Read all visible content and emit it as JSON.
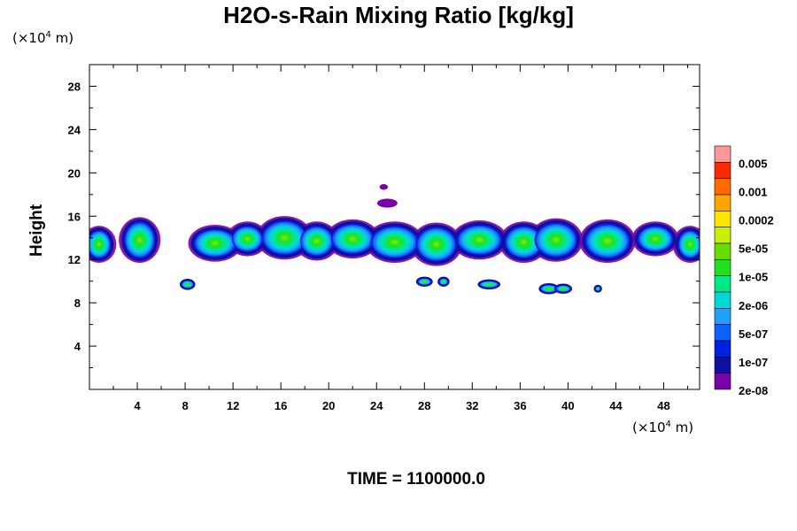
{
  "chart_data": {
    "type": "heatmap",
    "title": "H2O-s-Rain Mixing Ratio [kg/kg]",
    "ylabel": "Height",
    "xlabel": "",
    "x_unit_prefix": "(×10",
    "x_unit_exp": "4",
    "x_unit_suffix": " m)",
    "y_unit_prefix": "(×10",
    "y_unit_exp": "4",
    "y_unit_suffix": " m)",
    "footer": "TIME = 1100000.0",
    "xlim": [
      0,
      51
    ],
    "ylim": [
      0,
      30
    ],
    "xticks": [
      "4",
      "8",
      "12",
      "16",
      "20",
      "24",
      "28",
      "32",
      "36",
      "40",
      "44",
      "48"
    ],
    "xtick_values": [
      4,
      8,
      12,
      16,
      20,
      24,
      28,
      32,
      36,
      40,
      44,
      48
    ],
    "yticks": [
      "4",
      "8",
      "12",
      "16",
      "20",
      "24",
      "28"
    ],
    "ytick_values": [
      4,
      8,
      12,
      16,
      20,
      24,
      28
    ],
    "grid": false,
    "colorbar": {
      "levels": [
        "0.005",
        "0.001",
        "0.0002",
        "5e-05",
        "1e-05",
        "2e-06",
        "5e-07",
        "1e-07",
        "2e-08"
      ],
      "colors": [
        "#ff9999",
        "#ff2a00",
        "#ff6a00",
        "#ffa500",
        "#ffe600",
        "#c8f000",
        "#66dd00",
        "#22e022",
        "#00e88a",
        "#00d8d8",
        "#20a0ff",
        "#1060ff",
        "#0020e0",
        "#1010a0",
        "#7a00a8"
      ]
    },
    "main_band": {
      "y_range": [
        11.6,
        16.3
      ],
      "cells": [
        {
          "x": 0.8,
          "y": 13.4,
          "rx": 1.0,
          "ry": 1.3
        },
        {
          "x": 4.2,
          "y": 13.8,
          "rx": 1.3,
          "ry": 1.7
        },
        {
          "x": 10.5,
          "y": 13.5,
          "rx": 1.8,
          "ry": 1.3
        },
        {
          "x": 13.2,
          "y": 13.9,
          "rx": 1.3,
          "ry": 1.2
        },
        {
          "x": 16.3,
          "y": 14.0,
          "rx": 1.9,
          "ry": 1.6
        },
        {
          "x": 19.0,
          "y": 13.7,
          "rx": 1.4,
          "ry": 1.4
        },
        {
          "x": 22.0,
          "y": 13.9,
          "rx": 1.8,
          "ry": 1.4
        },
        {
          "x": 25.5,
          "y": 13.6,
          "rx": 2.0,
          "ry": 1.5
        },
        {
          "x": 29.0,
          "y": 13.4,
          "rx": 1.7,
          "ry": 1.6
        },
        {
          "x": 32.6,
          "y": 13.8,
          "rx": 1.9,
          "ry": 1.4
        },
        {
          "x": 36.3,
          "y": 13.6,
          "rx": 1.6,
          "ry": 1.5
        },
        {
          "x": 39.0,
          "y": 13.8,
          "rx": 1.8,
          "ry": 1.6
        },
        {
          "x": 43.3,
          "y": 13.7,
          "rx": 1.9,
          "ry": 1.6
        },
        {
          "x": 47.3,
          "y": 13.9,
          "rx": 1.5,
          "ry": 1.2
        },
        {
          "x": 50.2,
          "y": 13.4,
          "rx": 1.0,
          "ry": 1.3
        }
      ]
    },
    "small_cells": [
      {
        "x": 8.2,
        "y": 9.7,
        "rx": 0.5,
        "ry": 0.35
      },
      {
        "x": 28.0,
        "y": 9.95,
        "rx": 0.55,
        "ry": 0.3
      },
      {
        "x": 29.6,
        "y": 9.95,
        "rx": 0.35,
        "ry": 0.3
      },
      {
        "x": 33.4,
        "y": 9.7,
        "rx": 0.8,
        "ry": 0.3
      },
      {
        "x": 38.4,
        "y": 9.3,
        "rx": 0.7,
        "ry": 0.35
      },
      {
        "x": 39.6,
        "y": 9.3,
        "rx": 0.6,
        "ry": 0.3
      },
      {
        "x": 42.5,
        "y": 9.3,
        "rx": 0.2,
        "ry": 0.2
      },
      {
        "x": 24.9,
        "y": 17.2,
        "rx": 0.7,
        "ry": 0.25
      },
      {
        "x": 24.6,
        "y": 18.7,
        "rx": 0.2,
        "ry": 0.1
      }
    ]
  }
}
